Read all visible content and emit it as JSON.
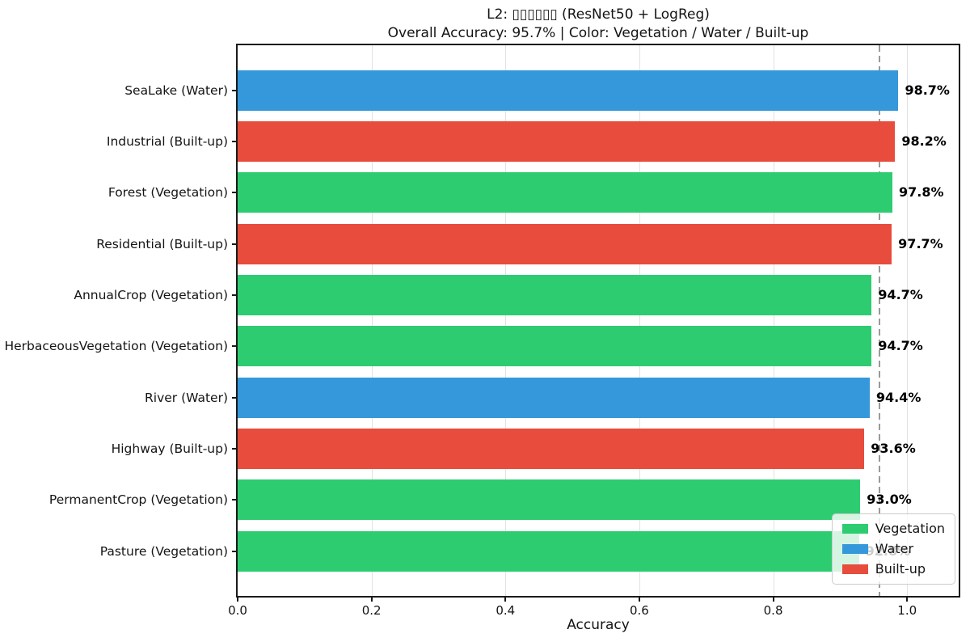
{
  "chart_data": {
    "type": "bar",
    "orientation": "horizontal",
    "title": "L2: ▯▯▯▯▯▯ (ResNet50 + LogReg)",
    "subtitle": "Overall Accuracy: 95.7% | Color: Vegetation / Water / Built-up",
    "xlabel": "Accuracy",
    "xlim": [
      0,
      1.077
    ],
    "xticks": [
      0.0,
      0.2,
      0.4,
      0.6,
      0.8,
      1.0
    ],
    "grid": "vertical",
    "categories": [
      "SeaLake (Water)",
      "Industrial (Built-up)",
      "Forest (Vegetation)",
      "Residential (Built-up)",
      "AnnualCrop (Vegetation)",
      "HerbaceousVegetation (Vegetation)",
      "River (Water)",
      "Highway (Built-up)",
      "PermanentCrop (Vegetation)",
      "Pasture (Vegetation)"
    ],
    "values": [
      0.987,
      0.982,
      0.978,
      0.977,
      0.947,
      0.947,
      0.944,
      0.936,
      0.93,
      0.928
    ],
    "value_labels": [
      "98.7%",
      "98.2%",
      "97.8%",
      "97.7%",
      "94.7%",
      "94.7%",
      "94.4%",
      "93.6%",
      "93.0%",
      "92.8%"
    ],
    "groups": [
      "Water",
      "Built-up",
      "Vegetation",
      "Built-up",
      "Vegetation",
      "Vegetation",
      "Water",
      "Built-up",
      "Vegetation",
      "Vegetation"
    ],
    "colors": {
      "Vegetation": "#2ecc71",
      "Water": "#3498db",
      "Built-up": "#e74c3c"
    },
    "reference_line": {
      "value": 0.957,
      "color": "#9a9a9a",
      "style": "dashed"
    },
    "overall_accuracy_percent": "95.7%",
    "legend": {
      "position": "lower-right",
      "entries": [
        "Vegetation",
        "Water",
        "Built-up"
      ]
    }
  }
}
